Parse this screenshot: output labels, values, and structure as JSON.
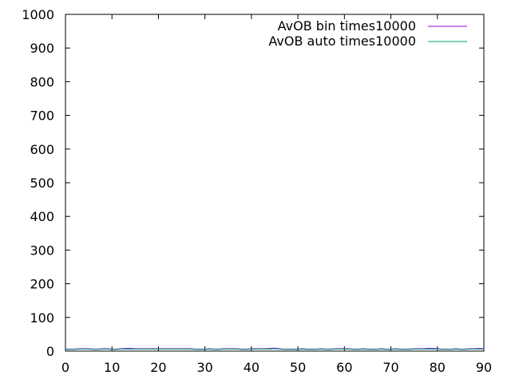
{
  "chart_data": {
    "type": "line",
    "title": "",
    "xlabel": "",
    "ylabel": "",
    "xlim": [
      0,
      90
    ],
    "ylim": [
      0,
      1000
    ],
    "x_ticks": [
      0,
      10,
      20,
      30,
      40,
      50,
      60,
      70,
      80,
      90
    ],
    "y_ticks": [
      0,
      100,
      200,
      300,
      400,
      500,
      600,
      700,
      800,
      900,
      1000
    ],
    "grid": false,
    "legend_position": "top-right",
    "series": [
      {
        "name": "AvOB bin times10000",
        "color": "#9400d3",
        "x": [
          0,
          1,
          2,
          3,
          4,
          5,
          6,
          7,
          8,
          9,
          10,
          11,
          12,
          13,
          14,
          15,
          16,
          17,
          18,
          19,
          20,
          21,
          22,
          23,
          24,
          25,
          26,
          27,
          28,
          29,
          30,
          31,
          32,
          33,
          34,
          35,
          36,
          37,
          38,
          39,
          40,
          41,
          42,
          43,
          44,
          45,
          46,
          47,
          48,
          49,
          50,
          51,
          52,
          53,
          54,
          55,
          56,
          57,
          58,
          59,
          60,
          61,
          62,
          63,
          64,
          65,
          66,
          67,
          68,
          69,
          70,
          71,
          72,
          73,
          74,
          75,
          76,
          77,
          78,
          79,
          80,
          81,
          82,
          83,
          84,
          85,
          86,
          87,
          88,
          89,
          90
        ],
        "y": [
          6,
          6,
          6,
          7,
          7,
          7,
          6,
          6,
          7,
          7,
          6,
          6,
          7,
          8,
          8,
          7,
          7,
          7,
          7,
          7,
          7,
          7,
          7,
          7,
          7,
          7,
          7,
          7,
          6,
          6,
          6,
          7,
          6,
          6,
          7,
          7,
          7,
          7,
          6,
          6,
          7,
          7,
          7,
          7,
          8,
          9,
          7,
          6,
          6,
          6,
          6,
          7,
          6,
          6,
          6,
          7,
          6,
          6,
          7,
          7,
          7,
          7,
          6,
          6,
          7,
          6,
          6,
          6,
          7,
          6,
          6,
          7,
          6,
          6,
          6,
          7,
          7,
          7,
          8,
          8,
          7,
          6,
          6,
          6,
          7,
          6,
          6,
          7,
          7,
          8,
          7
        ]
      },
      {
        "name": "AvOB auto times10000",
        "color": "#009e73",
        "x": [
          0,
          1,
          2,
          3,
          4,
          5,
          6,
          7,
          8,
          9,
          10,
          11,
          12,
          13,
          14,
          15,
          16,
          17,
          18,
          19,
          20,
          21,
          22,
          23,
          24,
          25,
          26,
          27,
          28,
          29,
          30,
          31,
          32,
          33,
          34,
          35,
          36,
          37,
          38,
          39,
          40,
          41,
          42,
          43,
          44,
          45,
          46,
          47,
          48,
          49,
          50,
          51,
          52,
          53,
          54,
          55,
          56,
          57,
          58,
          59,
          60,
          61,
          62,
          63,
          64,
          65,
          66,
          67,
          68,
          69,
          70,
          71,
          72,
          73,
          74,
          75,
          76,
          77,
          78,
          79,
          80,
          81,
          82,
          83,
          84,
          85,
          86,
          87,
          88,
          89,
          90
        ],
        "y": [
          5,
          5,
          5,
          6,
          6,
          6,
          5,
          5,
          6,
          6,
          5,
          5,
          6,
          6,
          6,
          6,
          6,
          6,
          6,
          6,
          6,
          6,
          6,
          6,
          6,
          6,
          6,
          6,
          5,
          5,
          5,
          6,
          5,
          5,
          6,
          6,
          6,
          6,
          5,
          5,
          6,
          6,
          6,
          6,
          6,
          7,
          6,
          5,
          5,
          5,
          5,
          6,
          5,
          5,
          5,
          6,
          5,
          5,
          6,
          6,
          6,
          6,
          5,
          5,
          6,
          5,
          5,
          5,
          6,
          5,
          5,
          6,
          5,
          5,
          5,
          6,
          6,
          6,
          6,
          6,
          6,
          5,
          5,
          5,
          6,
          5,
          5,
          6,
          6,
          6,
          6
        ]
      }
    ]
  }
}
